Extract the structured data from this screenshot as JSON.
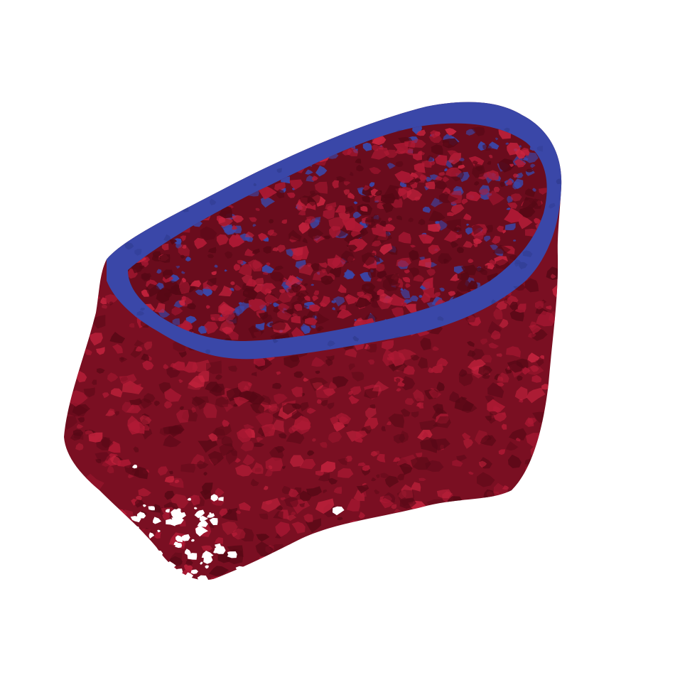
{
  "scene": {
    "subject": "bone-sample-volume-render",
    "colors": {
      "background": "#ffffff",
      "cortical_shell": "#3a47a8",
      "cortical_shell_dark": "#2e3a8c",
      "trabecular_base": "#7a0f22",
      "trabecular_dark": "#560815",
      "trabecular_light": "#b01a35",
      "trabecular_highlight": "#c8243f"
    }
  }
}
